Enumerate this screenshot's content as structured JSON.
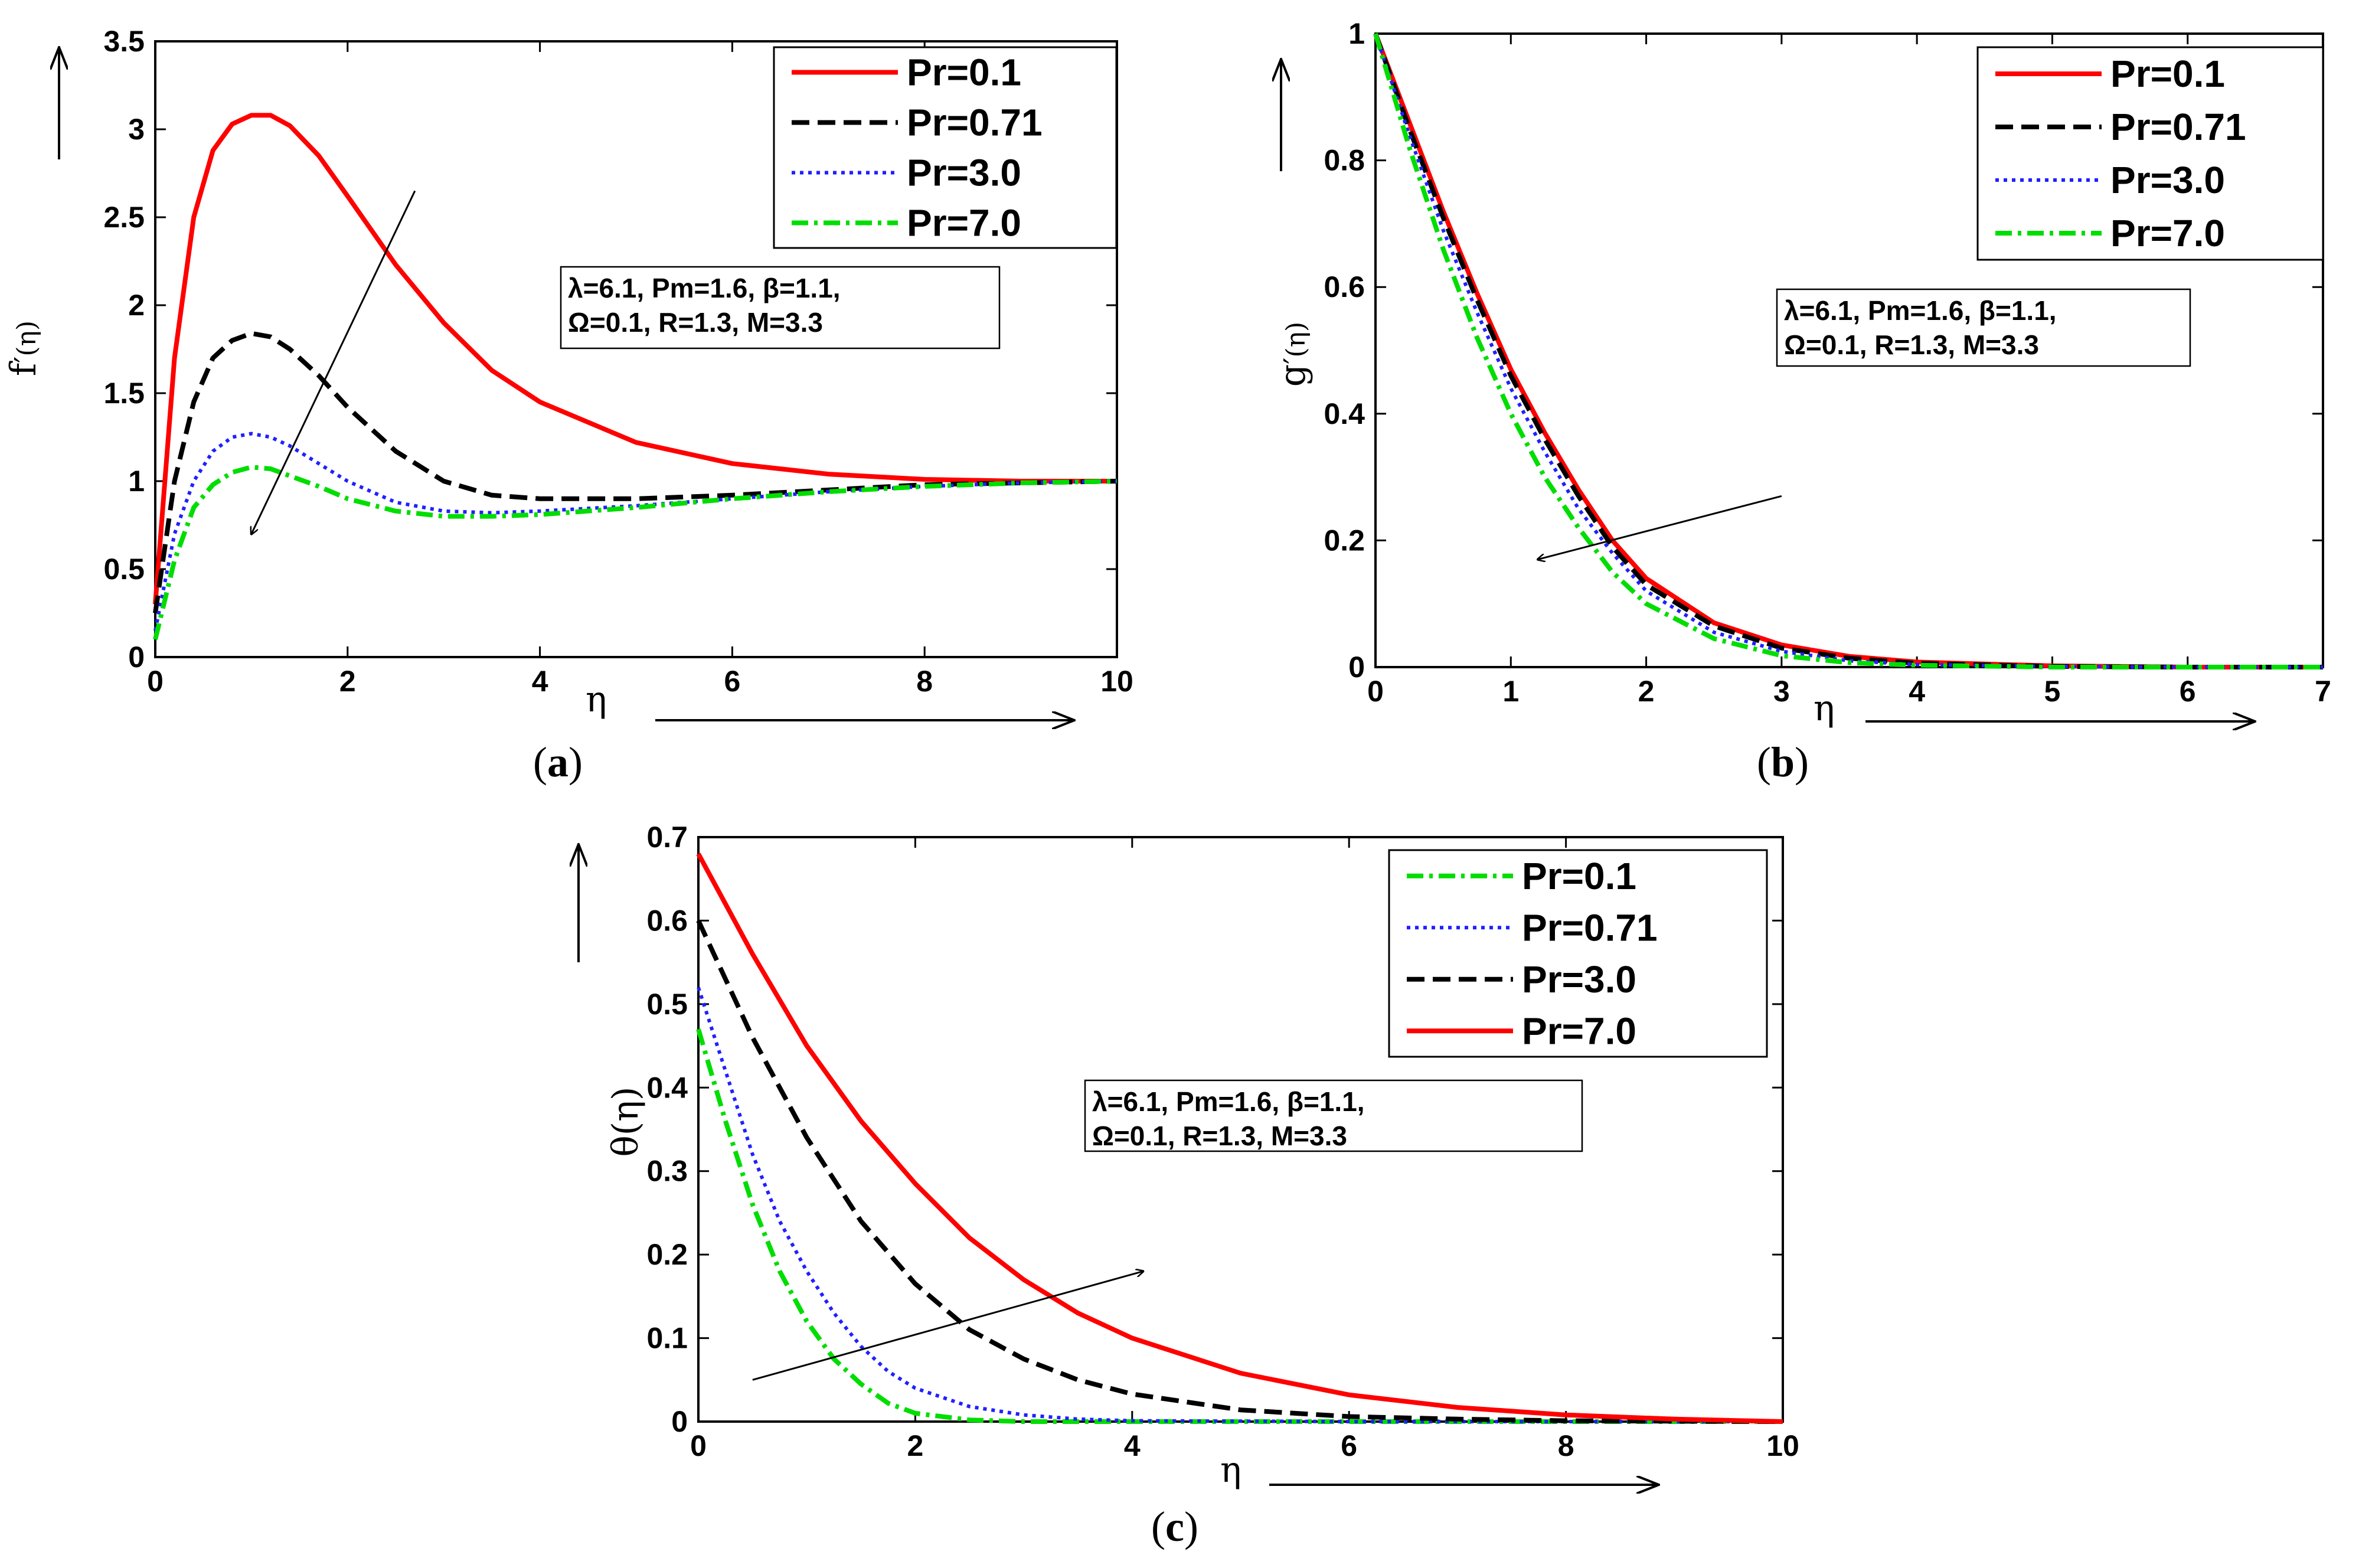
{
  "chart_data": [
    {
      "id": "a",
      "type": "line",
      "panel_label": "(a)",
      "panel_letter": "a",
      "ylabel_main": "f",
      "ylabel_sub": "(η)",
      "xlabel": "η",
      "xlim": [
        0,
        10
      ],
      "ylim": [
        0,
        3.5
      ],
      "xticks": [
        0,
        2,
        4,
        6,
        8,
        10
      ],
      "yticks": [
        0,
        0.5,
        1,
        1.5,
        2,
        2.5,
        3,
        3.5
      ],
      "legend": "top-right",
      "param_lines": [
        "λ=6.1, Pm=1.6, β=1.1,",
        "Ω=0.1, R=1.3, M=3.3"
      ],
      "series": [
        {
          "name": "Pr=0.1",
          "color": "#ff0000",
          "style": "solid",
          "x": [
            0,
            0.2,
            0.4,
            0.6,
            0.8,
            1.0,
            1.2,
            1.4,
            1.7,
            2.0,
            2.5,
            3.0,
            3.5,
            4.0,
            5.0,
            6.0,
            7.0,
            8.0,
            9.0,
            10.0
          ],
          "y": [
            0.3,
            1.7,
            2.5,
            2.88,
            3.03,
            3.08,
            3.08,
            3.02,
            2.85,
            2.62,
            2.23,
            1.9,
            1.63,
            1.45,
            1.22,
            1.1,
            1.04,
            1.01,
            1.0,
            1.0
          ]
        },
        {
          "name": "Pr=0.71",
          "color": "#000000",
          "style": "dashed",
          "x": [
            0,
            0.2,
            0.4,
            0.6,
            0.8,
            1.0,
            1.2,
            1.4,
            1.7,
            2.0,
            2.5,
            3.0,
            3.5,
            4.0,
            5.0,
            6.0,
            7.0,
            8.0,
            9.0,
            10.0
          ],
          "y": [
            0.25,
            1.0,
            1.45,
            1.7,
            1.8,
            1.84,
            1.82,
            1.75,
            1.6,
            1.42,
            1.17,
            1.0,
            0.92,
            0.9,
            0.9,
            0.92,
            0.95,
            0.98,
            0.99,
            1.0
          ]
        },
        {
          "name": "Pr=3.0",
          "color": "#2020ff",
          "style": "dotted",
          "x": [
            0,
            0.2,
            0.4,
            0.6,
            0.8,
            1.0,
            1.2,
            1.4,
            1.7,
            2.0,
            2.5,
            3.0,
            3.5,
            4.0,
            5.0,
            6.0,
            7.0,
            8.0,
            9.0,
            10.0
          ],
          "y": [
            0.15,
            0.7,
            1.0,
            1.17,
            1.25,
            1.27,
            1.25,
            1.2,
            1.1,
            1.0,
            0.88,
            0.83,
            0.82,
            0.83,
            0.86,
            0.9,
            0.94,
            0.97,
            0.99,
            1.0
          ]
        },
        {
          "name": "Pr=7.0",
          "color": "#00dd00",
          "style": "dashdot",
          "x": [
            0,
            0.2,
            0.4,
            0.6,
            0.8,
            1.0,
            1.2,
            1.4,
            1.7,
            2.0,
            2.5,
            3.0,
            3.5,
            4.0,
            5.0,
            6.0,
            7.0,
            8.0,
            9.0,
            10.0
          ],
          "y": [
            0.1,
            0.55,
            0.85,
            0.98,
            1.05,
            1.08,
            1.07,
            1.03,
            0.97,
            0.9,
            0.83,
            0.8,
            0.8,
            0.81,
            0.85,
            0.9,
            0.94,
            0.97,
            0.99,
            1.0
          ]
        }
      ],
      "arrow": {
        "from": [
          2.7,
          2.65
        ],
        "to": [
          1.0,
          0.7
        ]
      }
    },
    {
      "id": "b",
      "type": "line",
      "panel_label": "(b)",
      "panel_letter": "b",
      "ylabel_main": "g",
      "ylabel_sub": "(η)",
      "xlabel": "η",
      "xlim": [
        0,
        7
      ],
      "ylim": [
        0,
        1
      ],
      "xticks": [
        0,
        1,
        2,
        3,
        4,
        5,
        6,
        7
      ],
      "yticks": [
        0,
        0.2,
        0.4,
        0.6,
        0.8,
        1
      ],
      "legend": "top-right",
      "param_lines": [
        "λ=6.1, Pm=1.6, β=1.1,",
        "Ω=0.1, R=1.3, M=3.3"
      ],
      "series": [
        {
          "name": "Pr=0.1",
          "color": "#ff0000",
          "style": "solid",
          "x": [
            0,
            0.25,
            0.5,
            0.75,
            1.0,
            1.25,
            1.5,
            1.75,
            2.0,
            2.5,
            3.0,
            3.5,
            4.0,
            5.0,
            6.0,
            7.0
          ],
          "y": [
            1.0,
            0.86,
            0.72,
            0.59,
            0.47,
            0.37,
            0.28,
            0.2,
            0.14,
            0.07,
            0.035,
            0.017,
            0.008,
            0.002,
            0.0,
            0.0
          ]
        },
        {
          "name": "Pr=0.71",
          "color": "#000000",
          "style": "dashed",
          "x": [
            0,
            0.25,
            0.5,
            0.75,
            1.0,
            1.25,
            1.5,
            1.75,
            2.0,
            2.5,
            3.0,
            3.5,
            4.0,
            5.0,
            6.0,
            7.0
          ],
          "y": [
            1.0,
            0.85,
            0.71,
            0.58,
            0.46,
            0.36,
            0.27,
            0.19,
            0.13,
            0.065,
            0.03,
            0.014,
            0.006,
            0.001,
            0.0,
            0.0
          ]
        },
        {
          "name": "Pr=3.0",
          "color": "#2020ff",
          "style": "dotted",
          "x": [
            0,
            0.25,
            0.5,
            0.75,
            1.0,
            1.25,
            1.5,
            1.75,
            2.0,
            2.5,
            3.0,
            3.5,
            4.0,
            5.0,
            6.0,
            7.0
          ],
          "y": [
            1.0,
            0.84,
            0.69,
            0.56,
            0.44,
            0.34,
            0.25,
            0.18,
            0.12,
            0.055,
            0.025,
            0.01,
            0.004,
            0.001,
            0.0,
            0.0
          ]
        },
        {
          "name": "Pr=7.0",
          "color": "#00dd00",
          "style": "dashdot",
          "x": [
            0,
            0.25,
            0.5,
            0.75,
            1.0,
            1.25,
            1.5,
            1.75,
            2.0,
            2.5,
            3.0,
            3.5,
            4.0,
            5.0,
            6.0,
            7.0
          ],
          "y": [
            1.0,
            0.82,
            0.66,
            0.52,
            0.4,
            0.3,
            0.22,
            0.15,
            0.1,
            0.045,
            0.018,
            0.007,
            0.003,
            0.0,
            0.0,
            0.0
          ]
        }
      ],
      "arrow": {
        "from": [
          3.0,
          0.27
        ],
        "to": [
          1.2,
          0.17
        ]
      }
    },
    {
      "id": "c",
      "type": "line",
      "panel_label": "(c)",
      "panel_letter": "c",
      "ylabel_main": "θ(η)",
      "ylabel_sub": "",
      "xlabel": "η",
      "xlim": [
        0,
        10
      ],
      "ylim": [
        0,
        0.7
      ],
      "xticks": [
        0,
        2,
        4,
        6,
        8,
        10
      ],
      "yticks": [
        0,
        0.1,
        0.2,
        0.3,
        0.4,
        0.5,
        0.6,
        0.7
      ],
      "legend": "top-right",
      "param_lines": [
        "λ=6.1, Pm=1.6, β=1.1,",
        "Ω=0.1, R=1.3, M=3.3"
      ],
      "series": [
        {
          "name": "Pr=0.1",
          "color": "#00dd00",
          "style": "dashdot",
          "x": [
            0,
            0.25,
            0.5,
            0.75,
            1.0,
            1.25,
            1.5,
            1.75,
            2.0,
            2.5,
            3.0,
            4.0,
            6.0,
            8.0,
            10.0
          ],
          "y": [
            0.47,
            0.36,
            0.26,
            0.18,
            0.12,
            0.075,
            0.045,
            0.022,
            0.01,
            0.002,
            0.0,
            0.0,
            0.0,
            0.0,
            0.0
          ]
        },
        {
          "name": "Pr=0.71",
          "color": "#2020ff",
          "style": "dotted",
          "x": [
            0,
            0.25,
            0.5,
            0.75,
            1.0,
            1.25,
            1.5,
            1.75,
            2.0,
            2.5,
            3.0,
            3.5,
            4.0,
            6.0,
            8.0,
            10.0
          ],
          "y": [
            0.52,
            0.42,
            0.32,
            0.24,
            0.18,
            0.13,
            0.09,
            0.06,
            0.04,
            0.018,
            0.008,
            0.003,
            0.001,
            0.0,
            0.0,
            0.0
          ]
        },
        {
          "name": "Pr=3.0",
          "color": "#000000",
          "style": "dashed",
          "x": [
            0,
            0.5,
            1.0,
            1.5,
            2.0,
            2.5,
            3.0,
            3.5,
            4.0,
            5.0,
            6.0,
            7.0,
            8.0,
            10.0
          ],
          "y": [
            0.6,
            0.46,
            0.34,
            0.24,
            0.165,
            0.11,
            0.075,
            0.05,
            0.033,
            0.014,
            0.006,
            0.003,
            0.001,
            0.0
          ]
        },
        {
          "name": "Pr=7.0",
          "color": "#ff0000",
          "style": "solid",
          "x": [
            0,
            0.5,
            1.0,
            1.5,
            2.0,
            2.5,
            3.0,
            3.5,
            4.0,
            5.0,
            6.0,
            7.0,
            8.0,
            9.0,
            10.0
          ],
          "y": [
            0.68,
            0.56,
            0.45,
            0.36,
            0.285,
            0.22,
            0.17,
            0.13,
            0.1,
            0.058,
            0.032,
            0.017,
            0.008,
            0.003,
            0.0
          ]
        }
      ],
      "arrow": {
        "from": [
          0.5,
          0.05
        ],
        "to": [
          4.1,
          0.18
        ]
      }
    }
  ]
}
